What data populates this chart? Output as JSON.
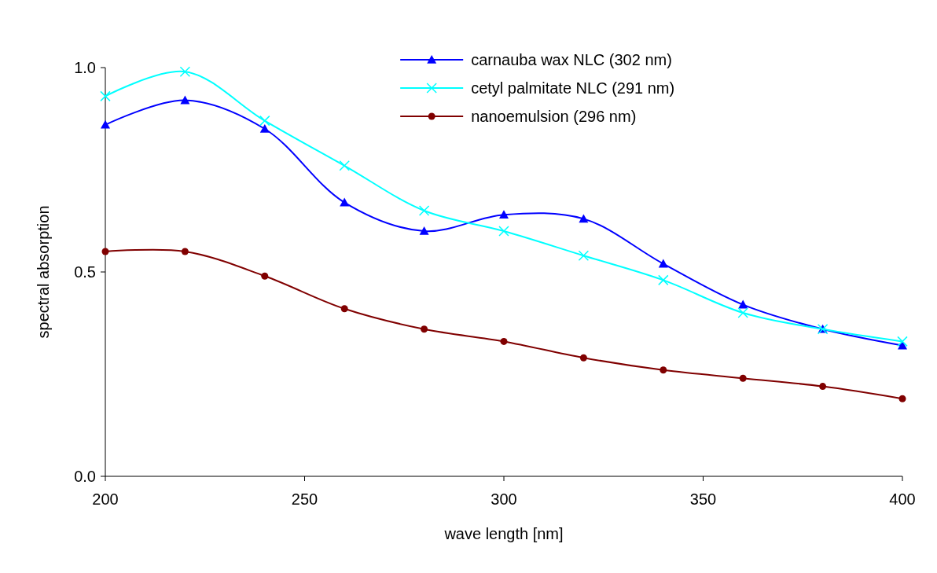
{
  "chart_data": {
    "type": "line",
    "xlabel": "wave length [nm]",
    "ylabel": "spectral absorption",
    "x": [
      200,
      220,
      240,
      260,
      280,
      300,
      320,
      340,
      360,
      380,
      400
    ],
    "xlim": [
      200,
      400
    ],
    "xticks": [
      200,
      250,
      300,
      350,
      400
    ],
    "ylim": [
      0,
      1
    ],
    "yticks": [
      {
        "value": 0,
        "label": "0.0"
      },
      {
        "value": 0.5,
        "label": "0.5"
      },
      {
        "value": 1,
        "label": "1.0"
      }
    ],
    "grid": false,
    "legend": "top right",
    "line_style": "solid",
    "series": [
      {
        "name": "carnauba wax NLC (302 nm)",
        "color": "#0000ff",
        "marker": "triangle",
        "values": [
          0.86,
          0.92,
          0.85,
          0.67,
          0.6,
          0.64,
          0.63,
          0.52,
          0.42,
          0.36,
          0.32
        ]
      },
      {
        "name": "cetyl palmitate NLC (291 nm)",
        "color": "#00ffff",
        "marker": "cross",
        "values": [
          0.93,
          0.99,
          0.87,
          0.76,
          0.65,
          0.6,
          0.54,
          0.48,
          0.4,
          0.36,
          0.33
        ]
      },
      {
        "name": "nanoemulsion (296 nm)",
        "color": "#800000",
        "marker": "circle",
        "values": [
          0.55,
          0.55,
          0.49,
          0.41,
          0.36,
          0.33,
          0.29,
          0.26,
          0.24,
          0.22,
          0.19
        ]
      }
    ]
  }
}
